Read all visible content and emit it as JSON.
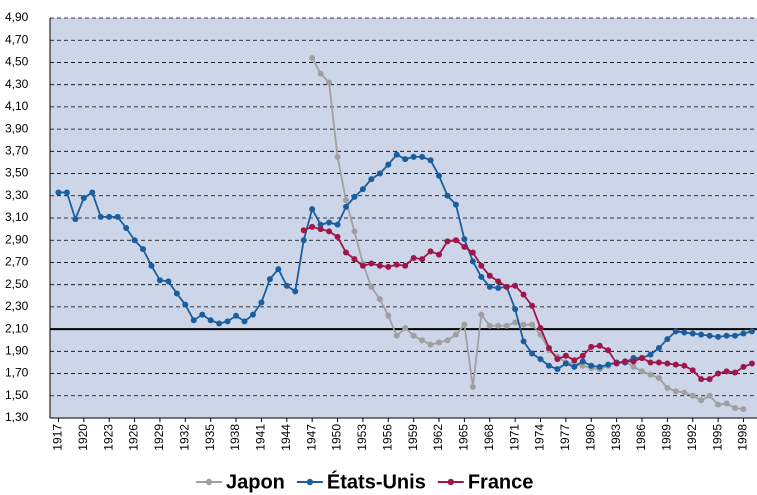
{
  "chart_data": {
    "type": "line",
    "x": [
      1917,
      1918,
      1919,
      1920,
      1921,
      1922,
      1923,
      1924,
      1925,
      1926,
      1927,
      1928,
      1929,
      1930,
      1931,
      1932,
      1933,
      1934,
      1935,
      1936,
      1937,
      1938,
      1939,
      1940,
      1941,
      1942,
      1943,
      1944,
      1945,
      1946,
      1947,
      1948,
      1949,
      1950,
      1951,
      1952,
      1953,
      1954,
      1955,
      1956,
      1957,
      1958,
      1959,
      1960,
      1961,
      1962,
      1963,
      1964,
      1965,
      1966,
      1967,
      1968,
      1969,
      1970,
      1971,
      1972,
      1973,
      1974,
      1975,
      1976,
      1977,
      1978,
      1979,
      1980,
      1981,
      1982,
      1983,
      1984,
      1985,
      1986,
      1987,
      1988,
      1989,
      1990,
      1991,
      1992,
      1993,
      1994,
      1995,
      1996,
      1997,
      1998,
      1999
    ],
    "series": [
      {
        "name": "Japon",
        "color": "#a0a0a0",
        "values": [
          null,
          null,
          null,
          null,
          null,
          null,
          null,
          null,
          null,
          null,
          null,
          null,
          null,
          null,
          null,
          null,
          null,
          null,
          null,
          null,
          null,
          null,
          null,
          null,
          null,
          null,
          null,
          null,
          null,
          null,
          4.54,
          4.4,
          4.32,
          3.65,
          3.26,
          2.98,
          2.69,
          2.48,
          2.37,
          2.22,
          2.04,
          2.11,
          2.04,
          2.0,
          1.96,
          1.98,
          2.0,
          2.05,
          2.14,
          1.58,
          2.23,
          2.13,
          2.13,
          2.13,
          2.16,
          2.14,
          2.14,
          2.05,
          1.91,
          1.85,
          1.8,
          1.79,
          1.77,
          1.75,
          1.74,
          1.77,
          1.8,
          1.81,
          1.76,
          1.72,
          1.69,
          1.66,
          1.57,
          1.54,
          1.53,
          1.5,
          1.46,
          1.5,
          1.42,
          1.43,
          1.39,
          1.38,
          null
        ]
      },
      {
        "name": "États-Unis",
        "color": "#1a5e9e",
        "values": [
          3.33,
          3.33,
          3.09,
          3.28,
          3.33,
          3.11,
          3.11,
          3.11,
          3.01,
          2.9,
          2.82,
          2.67,
          2.54,
          2.53,
          2.42,
          2.32,
          2.18,
          2.23,
          2.18,
          2.15,
          2.17,
          2.22,
          2.17,
          2.23,
          2.34,
          2.55,
          2.64,
          2.49,
          2.44,
          2.9,
          3.18,
          3.04,
          3.06,
          3.04,
          3.2,
          3.29,
          3.36,
          3.45,
          3.5,
          3.58,
          3.67,
          3.63,
          3.65,
          3.65,
          3.62,
          3.48,
          3.3,
          3.22,
          2.91,
          2.71,
          2.57,
          2.48,
          2.47,
          2.48,
          2.28,
          1.99,
          1.88,
          1.83,
          1.77,
          1.74,
          1.79,
          1.76,
          1.81,
          1.77,
          1.76,
          1.78,
          1.8,
          1.8,
          1.84,
          1.84,
          1.87,
          1.93,
          2.01,
          2.08,
          2.07,
          2.06,
          2.05,
          2.04,
          2.03,
          2.04,
          2.04,
          2.06,
          2.08
        ]
      },
      {
        "name": "France",
        "color": "#a0164a",
        "values": [
          null,
          null,
          null,
          null,
          null,
          null,
          null,
          null,
          null,
          null,
          null,
          null,
          null,
          null,
          null,
          null,
          null,
          null,
          null,
          null,
          null,
          null,
          null,
          null,
          null,
          null,
          null,
          null,
          null,
          2.99,
          3.02,
          3.0,
          2.98,
          2.93,
          2.79,
          2.73,
          2.67,
          2.69,
          2.67,
          2.66,
          2.68,
          2.67,
          2.74,
          2.73,
          2.8,
          2.77,
          2.89,
          2.9,
          2.84,
          2.79,
          2.67,
          2.58,
          2.53,
          2.48,
          2.49,
          2.41,
          2.31,
          2.11,
          1.93,
          1.83,
          1.86,
          1.82,
          1.86,
          1.94,
          1.95,
          1.91,
          1.79,
          1.81,
          1.81,
          1.84,
          1.8,
          1.8,
          1.79,
          1.78,
          1.77,
          1.73,
          1.65,
          1.65,
          1.7,
          1.72,
          1.71,
          1.76,
          1.79
        ]
      }
    ],
    "xlim": [
      1916,
      1999.6
    ],
    "xticks": [
      1917,
      1920,
      1923,
      1926,
      1929,
      1932,
      1935,
      1938,
      1941,
      1944,
      1947,
      1950,
      1953,
      1956,
      1959,
      1962,
      1965,
      1968,
      1971,
      1974,
      1977,
      1980,
      1983,
      1986,
      1989,
      1992,
      1995,
      1998
    ],
    "ylim": [
      1.3,
      4.9
    ],
    "yticks": [
      {
        "value": 1.3,
        "label": "1,30"
      },
      {
        "value": 1.5,
        "label": "1,50"
      },
      {
        "value": 1.7,
        "label": "1,70"
      },
      {
        "value": 1.9,
        "label": "1,90"
      },
      {
        "value": 2.1,
        "label": "2,10"
      },
      {
        "value": 2.3,
        "label": "2,30"
      },
      {
        "value": 2.5,
        "label": "2,50"
      },
      {
        "value": 2.7,
        "label": "2,70"
      },
      {
        "value": 2.9,
        "label": "2,90"
      },
      {
        "value": 3.1,
        "label": "3,10"
      },
      {
        "value": 3.3,
        "label": "3,30"
      },
      {
        "value": 3.5,
        "label": "3,50"
      },
      {
        "value": 3.7,
        "label": "3,70"
      },
      {
        "value": 3.9,
        "label": "3,90"
      },
      {
        "value": 4.1,
        "label": "4,10"
      },
      {
        "value": 4.3,
        "label": "4,30"
      },
      {
        "value": 4.5,
        "label": "4,50"
      },
      {
        "value": 4.7,
        "label": "4,70"
      },
      {
        "value": 4.9,
        "label": "4,90"
      }
    ],
    "reference_line": 2.1,
    "grid": true
  }
}
